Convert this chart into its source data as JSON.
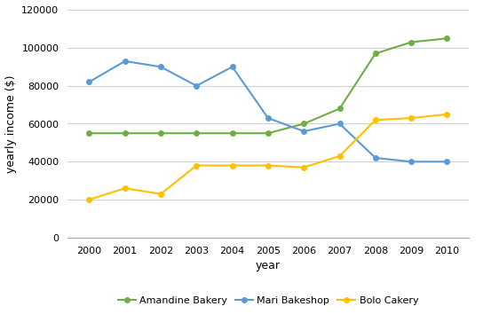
{
  "title": "",
  "xlabel": "year",
  "ylabel": "yearly income ($)",
  "years": [
    2000,
    2001,
    2002,
    2003,
    2004,
    2005,
    2006,
    2007,
    2008,
    2009,
    2010
  ],
  "amandine_bakery": [
    55000,
    55000,
    55000,
    55000,
    55000,
    55000,
    60000,
    68000,
    97000,
    103000,
    105000
  ],
  "mari_bakeshop": [
    82000,
    93000,
    90000,
    80000,
    90000,
    63000,
    56000,
    60000,
    42000,
    40000,
    40000
  ],
  "bolo_cakery": [
    20000,
    26000,
    23000,
    38000,
    38000,
    38000,
    37000,
    43000,
    62000,
    63000,
    65000
  ],
  "amandine_color": "#70ad47",
  "mari_color": "#5b9bd5",
  "bolo_color": "#ffc000",
  "ylim": [
    0,
    120000
  ],
  "yticks": [
    0,
    20000,
    40000,
    60000,
    80000,
    100000,
    120000
  ],
  "legend_labels": [
    "Amandine Bakery",
    "Mari Bakeshop",
    "Bolo Cakery"
  ],
  "marker": "o",
  "linewidth": 1.5,
  "markersize": 4,
  "grid_color": "#d0d0d0",
  "background_color": "#ffffff",
  "label_fontsize": 9,
  "tick_fontsize": 8,
  "legend_fontsize": 8
}
